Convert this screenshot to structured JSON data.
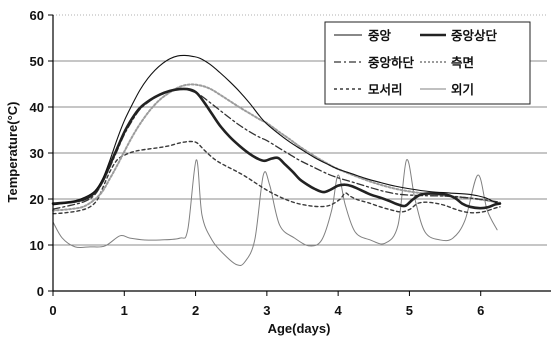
{
  "chart_data": {
    "type": "line",
    "xlabel": "Age(days)",
    "ylabel": "Temperature(°C)",
    "xlim": [
      0,
      7
    ],
    "ylim": [
      0,
      60
    ],
    "xticks": [
      0,
      1,
      2,
      3,
      4,
      5,
      6
    ],
    "yticks": [
      0,
      10,
      20,
      30,
      40,
      50,
      60
    ],
    "grid": true,
    "legend": "top-right",
    "series": [
      {
        "name": "중앙",
        "color": "#111111",
        "x": [
          0,
          0.24,
          0.45,
          0.59,
          0.7,
          0.8,
          0.9,
          1.0,
          1.11,
          1.22,
          1.33,
          1.43,
          1.54,
          1.64,
          1.75,
          1.85,
          1.96,
          2.06,
          2.2,
          2.34,
          2.48,
          2.62,
          2.76,
          2.9,
          3.0,
          3.18,
          3.32,
          3.46,
          3.67,
          3.86,
          4.0,
          4.19,
          4.38,
          4.59,
          4.8,
          5.01,
          5.29,
          5.57,
          5.85,
          6.06,
          6.2,
          6.27
        ],
        "y": [
          18.7,
          19.3,
          20.4,
          21.8,
          24.5,
          28.5,
          33,
          37,
          40.5,
          43.7,
          46.2,
          48,
          49.5,
          50.5,
          51.1,
          51.2,
          51,
          50.6,
          49.3,
          47.5,
          45.5,
          43.3,
          40.8,
          38,
          36.3,
          34,
          32.4,
          31,
          29,
          27.5,
          26.5,
          25.5,
          24.5,
          23.6,
          22.8,
          22.2,
          21.6,
          21.3,
          21,
          20.3,
          19.3,
          19
        ]
      },
      {
        "name": "중앙상단",
        "color": "#222222",
        "x": [
          0,
          0.24,
          0.45,
          0.59,
          0.7,
          0.8,
          0.9,
          1.0,
          1.11,
          1.22,
          1.36,
          1.5,
          1.64,
          1.78,
          1.92,
          2.02,
          2.13,
          2.23,
          2.34,
          2.48,
          2.62,
          2.76,
          2.88,
          2.97,
          3.07,
          3.16,
          3.25,
          3.37,
          3.46,
          3.58,
          3.67,
          3.79,
          3.89,
          4.0,
          4.1,
          4.19,
          4.31,
          4.45,
          4.59,
          4.73,
          4.84,
          4.94,
          5.04,
          5.15,
          5.29,
          5.5,
          5.64,
          5.74,
          5.85,
          5.99,
          6.1,
          6.2,
          6.27
        ],
        "y": [
          19,
          19.3,
          20,
          21.5,
          24,
          27.5,
          31,
          34.5,
          37.5,
          39.8,
          41.5,
          42.7,
          43.5,
          43.9,
          43.8,
          43,
          40.8,
          38.5,
          36,
          33.5,
          31.5,
          29.8,
          28.7,
          28.3,
          28.8,
          28.9,
          27.6,
          25.8,
          24.3,
          23,
          22.2,
          21.5,
          22,
          22.9,
          23.1,
          22.8,
          22,
          21,
          20.3,
          19.5,
          18.8,
          18.5,
          19.8,
          20.9,
          21.2,
          21,
          20.2,
          19,
          18.3,
          18,
          18.2,
          18.8,
          19
        ]
      },
      {
        "name": "중앙하단",
        "color": "#333333",
        "x": [
          0,
          0.24,
          0.45,
          0.59,
          0.7,
          0.8,
          0.9,
          1.0,
          1.11,
          1.22,
          1.36,
          1.5,
          1.64,
          1.78,
          1.92,
          2.06,
          2.2,
          2.34,
          2.48,
          2.62,
          2.76,
          2.9,
          3.0,
          3.18,
          3.32,
          3.46,
          3.67,
          3.86,
          4.0,
          4.24,
          4.45,
          4.66,
          4.87,
          5.08,
          5.29,
          5.57,
          5.85,
          6.06,
          6.27
        ],
        "y": [
          17.8,
          18.6,
          19.5,
          21,
          23.8,
          27,
          30.5,
          34,
          37,
          39.5,
          41.3,
          42.6,
          43.4,
          43.9,
          43.6,
          42.6,
          41,
          39.3,
          37.6,
          36,
          34.6,
          33.4,
          32.7,
          31,
          29.7,
          28.4,
          26.8,
          25.4,
          24.6,
          23.5,
          22.5,
          21.6,
          21,
          20.8,
          20.7,
          20.6,
          20.2,
          19.8,
          19.3
        ]
      },
      {
        "name": "측면",
        "color": "#9c9c9c",
        "x": [
          0,
          0.24,
          0.45,
          0.66,
          0.8,
          0.9,
          1.0,
          1.11,
          1.22,
          1.36,
          1.5,
          1.64,
          1.78,
          1.92,
          2.06,
          2.2,
          2.34,
          2.48,
          2.62,
          2.76,
          2.9,
          3.0,
          3.18,
          3.32,
          3.46,
          3.67,
          3.86,
          4.0,
          4.24,
          4.45,
          4.66,
          4.87,
          5.15,
          5.43,
          5.71,
          5.99,
          6.27
        ],
        "y": [
          17.5,
          17.8,
          18.5,
          21,
          24.5,
          27.3,
          30.3,
          33.5,
          36.3,
          39.3,
          41.6,
          43.2,
          44.4,
          44.9,
          44.7,
          44,
          42.7,
          41.3,
          39.9,
          38.6,
          37.3,
          36.5,
          34.5,
          33,
          31.4,
          29.3,
          27.6,
          26.5,
          25,
          23.8,
          22.8,
          22,
          21.3,
          20.8,
          20.4,
          19.9,
          19.2
        ]
      },
      {
        "name": "모서리",
        "color": "#3a3a3a",
        "x": [
          0,
          0.17,
          0.38,
          0.52,
          0.62,
          0.7,
          0.8,
          0.9,
          1.0,
          1.11,
          1.22,
          1.36,
          1.5,
          1.64,
          1.78,
          1.92,
          2.02,
          2.13,
          2.27,
          2.41,
          2.55,
          2.69,
          2.83,
          2.97,
          3.11,
          3.25,
          3.39,
          3.53,
          3.67,
          3.81,
          3.91,
          4.03,
          4.1,
          4.17,
          4.28,
          4.42,
          4.59,
          4.75,
          4.89,
          5.01,
          5.11,
          5.22,
          5.36,
          5.5,
          5.64,
          5.78,
          5.92,
          6.06,
          6.2,
          6.27
        ],
        "y": [
          16.8,
          17,
          17.5,
          18.3,
          19.8,
          22.5,
          26,
          28.5,
          29.5,
          30.2,
          30.6,
          30.9,
          31.2,
          31.6,
          32.2,
          32.5,
          32.2,
          30.5,
          28.6,
          27.3,
          26.2,
          25,
          23.6,
          22.2,
          21,
          20,
          19.2,
          18.7,
          18.4,
          18.4,
          18.8,
          20,
          21.3,
          20.6,
          19.8,
          19.2,
          18.3,
          17.6,
          17.2,
          17.8,
          19,
          19.3,
          19.1,
          18.6,
          17.8,
          17.2,
          17,
          17.3,
          18,
          18.3
        ]
      },
      {
        "name": "외기",
        "color": "#808080",
        "x": [
          0,
          0.13,
          0.31,
          0.52,
          0.73,
          0.94,
          1.08,
          1.29,
          1.5,
          1.78,
          1.89,
          2.01,
          2.09,
          2.23,
          2.41,
          2.58,
          2.69,
          2.83,
          2.95,
          3.04,
          3.18,
          3.39,
          3.6,
          3.77,
          3.91,
          4.0,
          4.1,
          4.24,
          4.45,
          4.66,
          4.84,
          4.96,
          5.08,
          5.22,
          5.43,
          5.61,
          5.78,
          5.96,
          6.09,
          6.23
        ],
        "y": [
          15,
          11.5,
          9.6,
          9.6,
          9.8,
          12,
          11.5,
          11.1,
          11.1,
          11.5,
          13.3,
          28.5,
          16.5,
          11.1,
          7.8,
          5.7,
          6.3,
          11.1,
          25.2,
          23,
          14.3,
          11.5,
          9.8,
          11.1,
          17.6,
          25.2,
          18.7,
          12.8,
          11.1,
          10.4,
          14.3,
          28.5,
          19.8,
          12.8,
          11.1,
          11.5,
          15.4,
          25.2,
          17.6,
          13.3
        ]
      }
    ]
  }
}
